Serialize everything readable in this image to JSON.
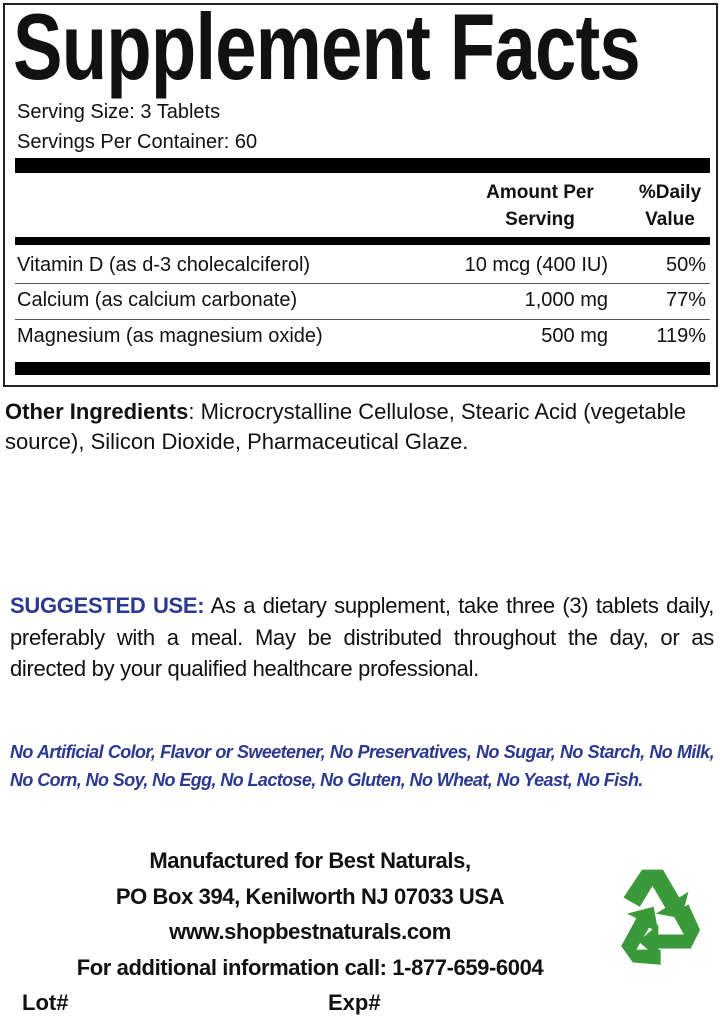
{
  "panel": {
    "title": "Supplement Facts",
    "serving_size": "Serving Size: 3 Tablets",
    "servings_per_container": "Servings Per Container: 60",
    "header_amount_1": "Amount Per",
    "header_amount_2": "Serving",
    "header_dv_1": "%Daily",
    "header_dv_2": "Value",
    "rows": [
      {
        "name": "Vitamin D (as d-3 cholecalciferol)",
        "amount": "10 mcg (400 IU)",
        "dv": "50%"
      },
      {
        "name": "Calcium (as calcium carbonate)",
        "amount": "1,000 mg",
        "dv": "77%"
      },
      {
        "name": "Magnesium (as magnesium oxide)",
        "amount": "500 mg",
        "dv": "119%"
      }
    ]
  },
  "other_ingredients": {
    "label": "Other Ingredients",
    "text": ": Microcrystalline Cellulose, Stearic Acid (vegetable source), Silicon Dioxide, Pharmaceutical Glaze."
  },
  "suggested_use": {
    "label": "SUGGESTED USE:",
    "text": " As a dietary supplement, take three (3) tablets daily, preferably with a meal. May be distributed throughout the day, or as directed by your qualified healthcare professional."
  },
  "free_from": "No Artificial Color, Flavor or Sweetener, No Preservatives, No Sugar, No Starch, No Milk, No Corn, No Soy, No Egg, No Lactose, No Gluten, No Wheat, No Yeast, No Fish.",
  "manufacturer": {
    "line1": "Manufactured for Best Naturals,",
    "line2": "PO Box 394, Kenilworth NJ 07033 USA",
    "line3": "www.shopbestnaturals.com",
    "line4": "For additional information call: 1-877-659-6004",
    "lot": "Lot#",
    "exp": "Exp#"
  },
  "colors": {
    "accent_blue": "#2b3990",
    "recycle_green": "#3a9a3a"
  },
  "icons": {
    "recycle": "recycle-icon"
  }
}
